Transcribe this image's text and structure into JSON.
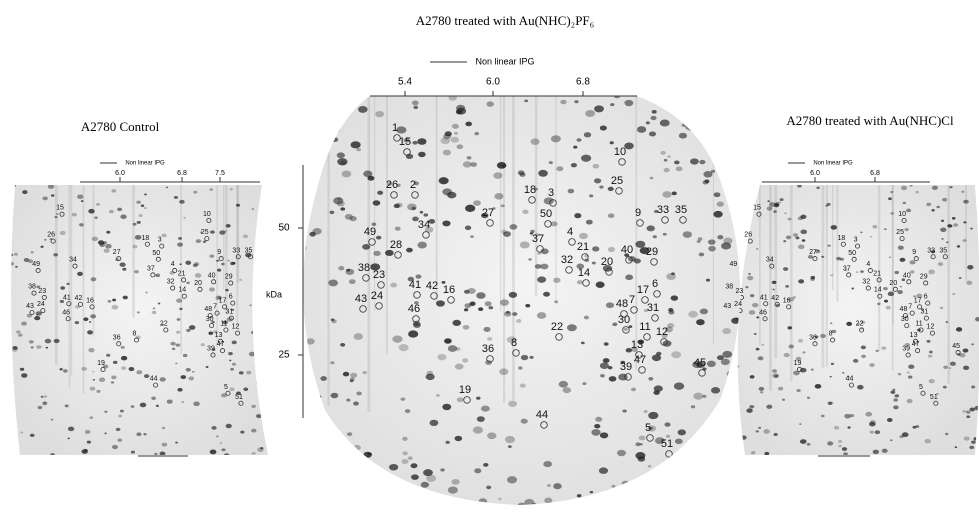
{
  "figure": {
    "kda_label": "kDa",
    "kda_ticks": [
      50,
      25
    ],
    "gels": [
      {
        "title": "A2780 Control",
        "ipg_label": "Non linear IPG",
        "ph_ticks": [
          {
            "value": 6,
            "label": "6.0"
          },
          {
            "value": 6.8,
            "label": "6.8"
          },
          {
            "value": 7.5,
            "label": "7.5"
          }
        ],
        "spots": [
          "15",
          "26",
          "10",
          "25",
          "18",
          "3",
          "27",
          "50",
          "37",
          "4",
          "21",
          "32",
          "14",
          "20",
          "40",
          "29",
          "6",
          "17",
          "7",
          "48",
          "31",
          "30",
          "11",
          "12",
          "22",
          "13",
          "47",
          "39",
          "36",
          "8",
          "19",
          "44",
          "5",
          "51",
          "49",
          "34",
          "38",
          "23",
          "24",
          "43",
          "46",
          "41",
          "42",
          "16",
          "9",
          "33",
          "35"
        ]
      },
      {
        "title": "A2780 treated with Au(NHC)₂PF₆",
        "ipg_label": "Non linear IPG",
        "ph_ticks": [
          {
            "value": 5.4,
            "label": "5.4"
          },
          {
            "value": 6,
            "label": "6.0"
          },
          {
            "value": 6.8,
            "label": "6.8"
          }
        ],
        "spots": [
          "1",
          "15",
          "2",
          "26",
          "10",
          "25",
          "18",
          "3",
          "9",
          "33",
          "35",
          "27",
          "50",
          "49",
          "34",
          "28",
          "37",
          "4",
          "21",
          "40",
          "29",
          "32",
          "20",
          "14",
          "6",
          "38",
          "23",
          "41",
          "42",
          "16",
          "17",
          "7",
          "48",
          "31",
          "24",
          "43",
          "46",
          "30",
          "11",
          "12",
          "22",
          "13",
          "36",
          "8",
          "47",
          "39",
          "45",
          "19",
          "44",
          "5",
          "51"
        ]
      },
      {
        "title": "A2780 treated with Au(NHC)Cl",
        "ipg_label": "Non linear IPG",
        "ph_ticks": [
          {
            "value": 6,
            "label": "6.0"
          },
          {
            "value": 6.8,
            "label": "6.8"
          }
        ],
        "spots": [
          "15",
          "26",
          "10",
          "25",
          "18",
          "3",
          "27",
          "50",
          "37",
          "4",
          "21",
          "32",
          "14",
          "20",
          "40",
          "29",
          "6",
          "17",
          "7",
          "48",
          "31",
          "30",
          "11",
          "12",
          "22",
          "13",
          "47",
          "39",
          "36",
          "8",
          "19",
          "44",
          "5",
          "51",
          "49",
          "34",
          "38",
          "23",
          "24",
          "43",
          "46",
          "41",
          "42",
          "16",
          "9",
          "33",
          "35",
          "45"
        ]
      }
    ]
  }
}
